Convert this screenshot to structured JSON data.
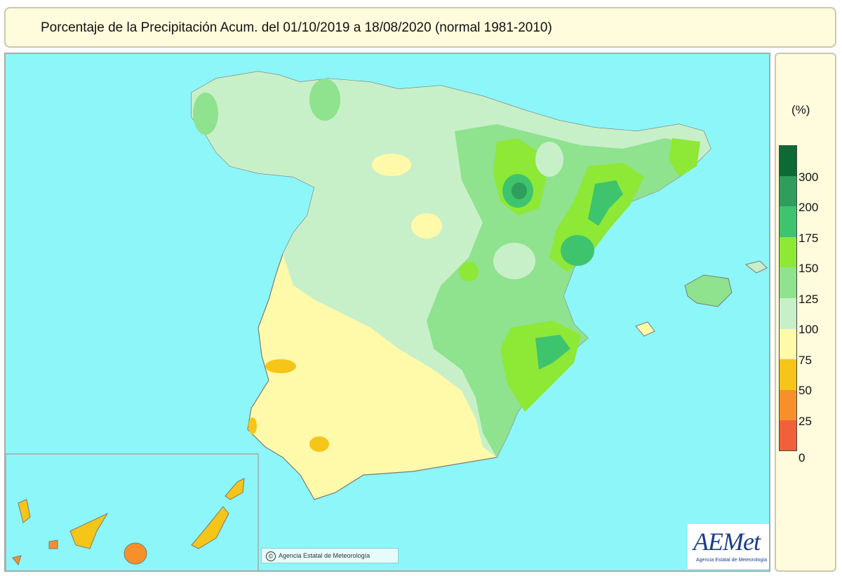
{
  "title": "Porcentaje de la Precipitación Acum. del 01/10/2019 a  18/08/2020  (normal 1981-2010)",
  "legend": {
    "unit": "(%)",
    "classes": [
      {
        "color": "#0b6b32"
      },
      {
        "color": "#2f9e5d"
      },
      {
        "color": "#3ec46d"
      },
      {
        "color": "#8ee836"
      },
      {
        "color": "#8fe28e"
      },
      {
        "color": "#c8f0c8"
      },
      {
        "color": "#fffaaa"
      },
      {
        "color": "#f5c518"
      },
      {
        "color": "#f7902a"
      },
      {
        "color": "#f2603a"
      }
    ],
    "ticks": [
      "300",
      "200",
      "175",
      "150",
      "125",
      "100",
      "75",
      "50",
      "25",
      "0"
    ]
  },
  "credit": "Agencia Estatal de Meteorología",
  "logo": {
    "name": "AEMet",
    "subtitle": "Agencia Estatal de Meteorología"
  },
  "colors": {
    "sea": "#8df6f8",
    "panel": "#fffbdc"
  }
}
